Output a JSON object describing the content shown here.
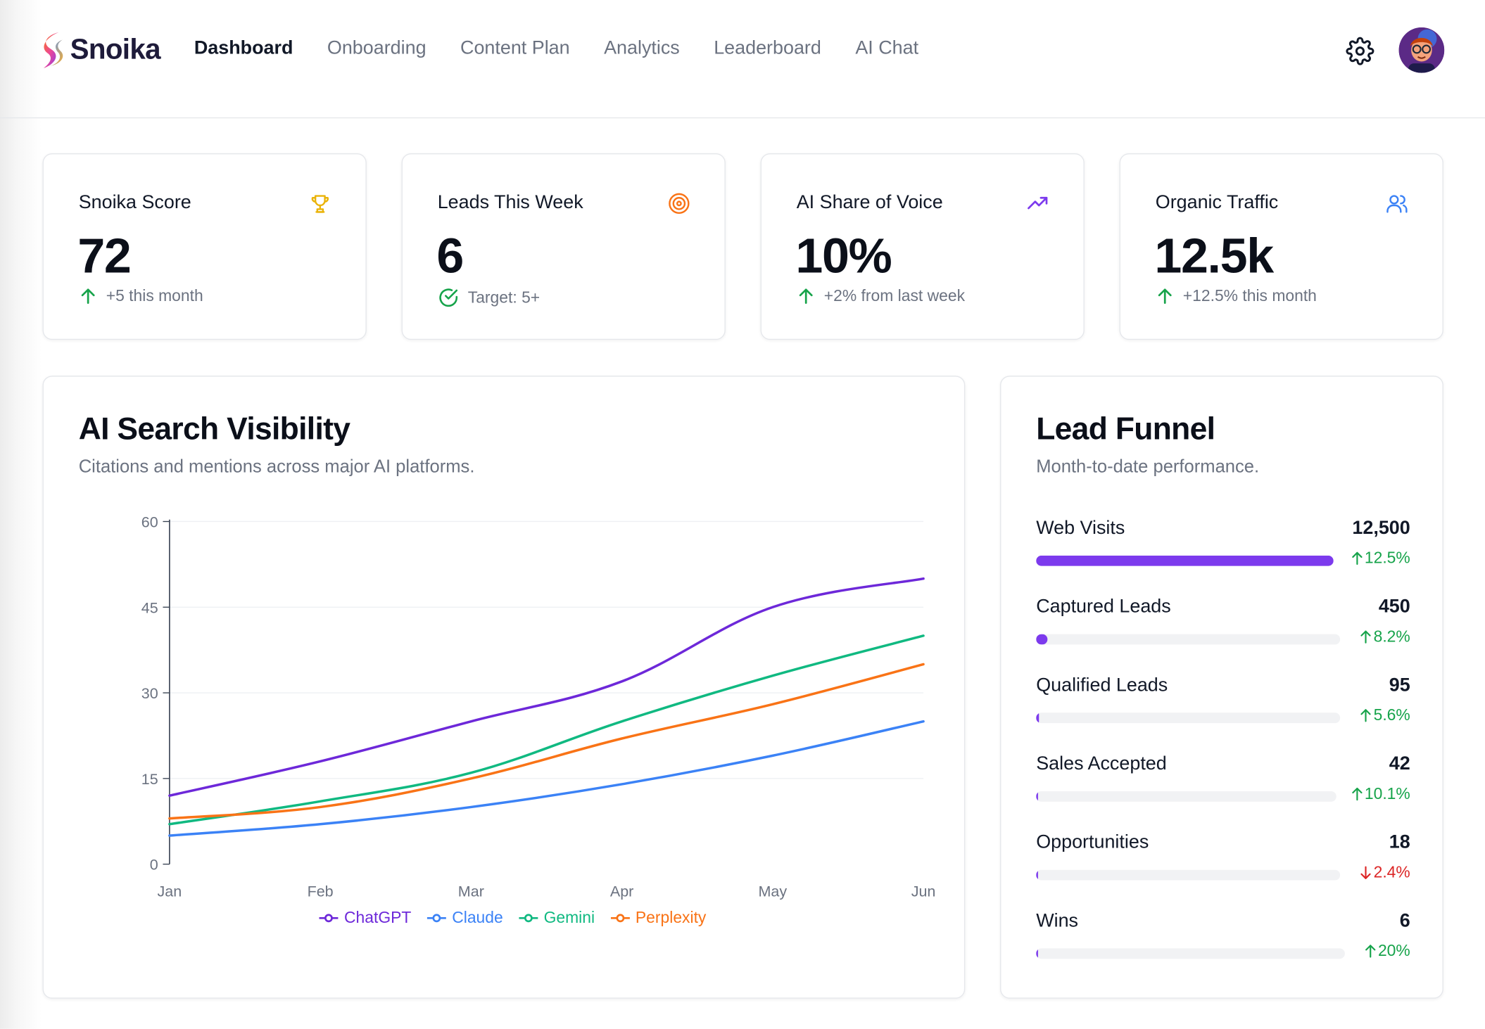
{
  "app": {
    "name": "Snoika"
  },
  "nav": {
    "items": [
      {
        "label": "Dashboard",
        "active": true
      },
      {
        "label": "Onboarding",
        "active": false
      },
      {
        "label": "Content Plan",
        "active": false
      },
      {
        "label": "Analytics",
        "active": false
      },
      {
        "label": "Leaderboard",
        "active": false
      },
      {
        "label": "AI Chat",
        "active": false
      }
    ]
  },
  "stats": [
    {
      "label": "Snoika Score",
      "value": "72",
      "sub": "+5 this month",
      "icon": "trophy-icon",
      "icon_color": "#eab308",
      "sub_icon": "arrow-up-icon"
    },
    {
      "label": "Leads This Week",
      "value": "6",
      "sub": "Target: 5+",
      "icon": "target-icon",
      "icon_color": "#f97316",
      "sub_icon": "check-circle-icon"
    },
    {
      "label": "AI Share of Voice",
      "value": "10%",
      "sub": "+2% from last week",
      "icon": "trending-up-icon",
      "icon_color": "#7c3aed",
      "sub_icon": "arrow-up-icon"
    },
    {
      "label": "Organic Traffic",
      "value": "12.5k",
      "sub": "+12.5% this month",
      "icon": "users-icon",
      "icon_color": "#3b82f6",
      "sub_icon": "arrow-up-icon"
    }
  ],
  "visibility": {
    "title": "AI Search Visibility",
    "subtitle": "Citations and mentions across major AI platforms."
  },
  "chart_data": {
    "type": "line",
    "title": "AI Search Visibility",
    "xlabel": "",
    "ylabel": "",
    "categories": [
      "Jan",
      "Feb",
      "Mar",
      "Apr",
      "May",
      "Jun"
    ],
    "ylim": [
      0,
      60
    ],
    "yticks": [
      0,
      15,
      30,
      45,
      60
    ],
    "grid": true,
    "legend_position": "bottom",
    "series": [
      {
        "name": "ChatGPT",
        "color": "#6d28d9",
        "values": [
          12,
          18,
          25,
          32,
          45,
          50
        ]
      },
      {
        "name": "Claude",
        "color": "#3b82f6",
        "values": [
          5,
          7,
          10,
          14,
          19,
          25
        ]
      },
      {
        "name": "Gemini",
        "color": "#10b981",
        "values": [
          7,
          11,
          16,
          25,
          33,
          40
        ]
      },
      {
        "name": "Perplexity",
        "color": "#f97316",
        "values": [
          8,
          10,
          15,
          22,
          28,
          35
        ]
      }
    ]
  },
  "funnel": {
    "title": "Lead Funnel",
    "subtitle": "Month-to-date performance.",
    "rows": [
      {
        "label": "Web Visits",
        "value": "12,500",
        "change": "12.5%",
        "direction": "up",
        "fill": 1.0
      },
      {
        "label": "Captured Leads",
        "value": "450",
        "change": "8.2%",
        "direction": "up",
        "fill": 0.036
      },
      {
        "label": "Qualified Leads",
        "value": "95",
        "change": "5.6%",
        "direction": "up",
        "fill": 0.0076
      },
      {
        "label": "Sales Accepted",
        "value": "42",
        "change": "10.1%",
        "direction": "up",
        "fill": 0.0034
      },
      {
        "label": "Opportunities",
        "value": "18",
        "change": "2.4%",
        "direction": "down",
        "fill": 0.0014
      },
      {
        "label": "Wins",
        "value": "6",
        "change": "20%",
        "direction": "up",
        "fill": 0.0005
      }
    ]
  }
}
